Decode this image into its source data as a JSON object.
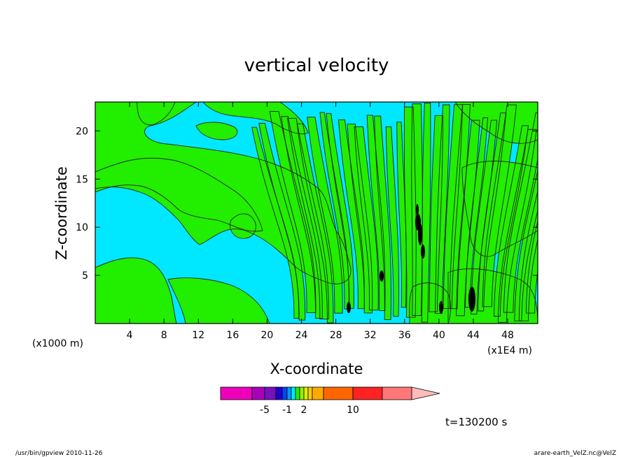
{
  "chart_data": {
    "type": "heatmap",
    "title": "vertical velocity",
    "xlabel": "X-coordinate",
    "ylabel": "Z-coordinate",
    "x_unit_left": "(x1000 m)",
    "x_unit_right": "(x1E4 m)",
    "time_label": "t=130200 s",
    "xlim": [
      0,
      51.5
    ],
    "ylim": [
      0,
      23
    ],
    "x_ticks": [
      4,
      8,
      12,
      16,
      20,
      24,
      28,
      32,
      36,
      40,
      44,
      48
    ],
    "y_ticks": [
      5,
      10,
      15,
      20
    ],
    "field_colors": {
      "background_level": "#00e8ff",
      "positive_level": "#22ee00",
      "strong_positive": "#000000",
      "contour_line": "#222222"
    },
    "colorbar": {
      "swatches": [
        "#ee00bb",
        "#aa00bb",
        "#7711bb",
        "#2200cc",
        "#0044ff",
        "#0099ff",
        "#00e8ff",
        "#22ee00",
        "#99ee00",
        "#ddee00",
        "#ffcc00",
        "#ffaa00",
        "#ff6600",
        "#ff2222",
        "#ff7777",
        "#ffbbbb"
      ],
      "tick_labels": [
        {
          "text": "-5",
          "value": -5
        },
        {
          "text": "-1",
          "value": -1
        },
        {
          "text": "2",
          "value": 2
        },
        {
          "text": "10",
          "value": 10
        }
      ]
    }
  },
  "footer": {
    "left": "/usr/bin/gpview   2010-11-26",
    "right": "arare-earth_VelZ.nc@VelZ"
  }
}
